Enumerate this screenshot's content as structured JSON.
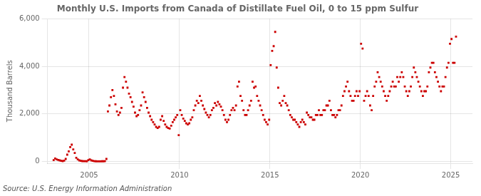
{
  "chart_data": {
    "type": "scatter",
    "title": "Monthly U.S. Imports from Canada of Distillate Fuel Oil, 0 to 15 ppm Sulfur",
    "ylabel": "Thousand Barrels",
    "source": "Source: U.S. Energy Information Administration",
    "color": "#cc0000",
    "marker": "square",
    "grid": true,
    "xlim": [
      2002.7,
      2026.2
    ],
    "xticks": [
      2005,
      2010,
      2015,
      2020,
      2025
    ],
    "ylim": [
      -80,
      6000
    ],
    "yticks": [
      0,
      {
        "value": 2000,
        "label": "2,000"
      },
      {
        "value": 4000,
        "label": "4,000"
      },
      {
        "value": 6000,
        "label": "6,000"
      }
    ],
    "x": [
      2003.0416666666667,
      2003.125,
      2003.2083333333333,
      2003.2916666666667,
      2003.375,
      2003.4583333333333,
      2003.5416666666667,
      2003.625,
      2003.7083333333333,
      2003.7916666666667,
      2003.875,
      2003.9583333333333,
      2004.0416666666667,
      2004.125,
      2004.2083333333333,
      2004.2916666666667,
      2004.375,
      2004.4583333333333,
      2004.5416666666667,
      2004.625,
      2004.7083333333333,
      2004.7916666666667,
      2004.875,
      2004.9583333333333,
      2005.0416666666667,
      2005.125,
      2005.2083333333333,
      2005.2916666666667,
      2005.375,
      2005.4583333333333,
      2005.5416666666667,
      2005.625,
      2005.7083333333333,
      2005.7916666666667,
      2005.875,
      2005.9583333333333,
      2006.0416666666667,
      2006.125,
      2006.2083333333333,
      2006.2916666666667,
      2006.375,
      2006.4583333333333,
      2006.5416666666667,
      2006.625,
      2006.7083333333333,
      2006.7916666666667,
      2006.875,
      2006.9583333333333,
      2007.0416666666667,
      2007.125,
      2007.2083333333333,
      2007.2916666666667,
      2007.375,
      2007.4583333333333,
      2007.5416666666667,
      2007.625,
      2007.7083333333333,
      2007.7916666666667,
      2007.875,
      2007.9583333333333,
      2008.0416666666667,
      2008.125,
      2008.2083333333333,
      2008.2916666666667,
      2008.375,
      2008.4583333333333,
      2008.5416666666667,
      2008.625,
      2008.7083333333333,
      2008.7916666666667,
      2008.875,
      2008.9583333333333,
      2009.0416666666667,
      2009.125,
      2009.2083333333333,
      2009.2916666666667,
      2009.375,
      2009.4583333333333,
      2009.5416666666667,
      2009.625,
      2009.7083333333333,
      2009.7916666666667,
      2009.875,
      2009.9583333333333,
      2010.0416666666667,
      2010.125,
      2010.2083333333333,
      2010.2916666666667,
      2010.375,
      2010.4583333333333,
      2010.5416666666667,
      2010.625,
      2010.7083333333333,
      2010.7916666666667,
      2010.875,
      2010.9583333333333,
      2011.0416666666667,
      2011.125,
      2011.2083333333333,
      2011.2916666666667,
      2011.375,
      2011.4583333333333,
      2011.5416666666667,
      2011.625,
      2011.7083333333333,
      2011.7916666666667,
      2011.875,
      2011.9583333333333,
      2012.0416666666667,
      2012.125,
      2012.2083333333333,
      2012.2916666666667,
      2012.375,
      2012.4583333333333,
      2012.5416666666667,
      2012.625,
      2012.7083333333333,
      2012.7916666666667,
      2012.875,
      2012.9583333333333,
      2013.0416666666667,
      2013.125,
      2013.2083333333333,
      2013.2916666666667,
      2013.375,
      2013.4583333333333,
      2013.5416666666667,
      2013.625,
      2013.7083333333333,
      2013.7916666666667,
      2013.875,
      2013.9583333333333,
      2014.0416666666667,
      2014.125,
      2014.2083333333333,
      2014.2916666666667,
      2014.375,
      2014.4583333333333,
      2014.5416666666667,
      2014.625,
      2014.7083333333333,
      2014.7916666666667,
      2014.875,
      2014.9583333333333,
      2015.0416666666667,
      2015.125,
      2015.2083333333333,
      2015.2916666666667,
      2015.375,
      2015.4583333333333,
      2015.5416666666667,
      2015.625,
      2015.7083333333333,
      2015.7916666666667,
      2015.875,
      2015.9583333333333,
      2016.0416666666667,
      2016.125,
      2016.2083333333333,
      2016.2916666666667,
      2016.375,
      2016.4583333333333,
      2016.5416666666667,
      2016.625,
      2016.7083333333333,
      2016.7916666666667,
      2016.875,
      2016.9583333333333,
      2017.0416666666667,
      2017.125,
      2017.2083333333333,
      2017.2916666666667,
      2017.375,
      2017.4583333333333,
      2017.5416666666667,
      2017.625,
      2017.7083333333333,
      2017.7916666666667,
      2017.875,
      2017.9583333333333,
      2018.0416666666667,
      2018.125,
      2018.2083333333333,
      2018.2916666666667,
      2018.375,
      2018.4583333333333,
      2018.5416666666667,
      2018.625,
      2018.7083333333333,
      2018.7916666666667,
      2018.875,
      2018.9583333333333,
      2019.0416666666667,
      2019.125,
      2019.2083333333333,
      2019.2916666666667,
      2019.375,
      2019.4583333333333,
      2019.5416666666667,
      2019.625,
      2019.7083333333333,
      2019.7916666666667,
      2019.875,
      2019.9583333333333,
      2020.0416666666667,
      2020.125,
      2020.2083333333333,
      2020.2916666666667,
      2020.375,
      2020.4583333333333,
      2020.5416666666667,
      2020.625,
      2020.7083333333333,
      2020.7916666666667,
      2020.875,
      2020.9583333333333,
      2021.0416666666667,
      2021.125,
      2021.2083333333333,
      2021.2916666666667,
      2021.375,
      2021.4583333333333,
      2021.5416666666667,
      2021.625,
      2021.7083333333333,
      2021.7916666666667,
      2021.875,
      2021.9583333333333,
      2022.0416666666667,
      2022.125,
      2022.2083333333333,
      2022.2916666666667,
      2022.375,
      2022.4583333333333,
      2022.5416666666667,
      2022.625,
      2022.7083333333333,
      2022.7916666666667,
      2022.875,
      2022.9583333333333,
      2023.0416666666667,
      2023.125,
      2023.2083333333333,
      2023.2916666666667,
      2023.375,
      2023.4583333333333,
      2023.5416666666667,
      2023.625,
      2023.7083333333333,
      2023.7916666666667,
      2023.875,
      2023.9583333333333,
      2024.0416666666667,
      2024.125,
      2024.2083333333333,
      2024.2916666666667,
      2024.375,
      2024.4583333333333,
      2024.5416666666667,
      2024.625,
      2024.7083333333333,
      2024.7916666666667,
      2024.875,
      2024.9583333333333,
      2025.0416666666667,
      2025.125,
      2025.2083333333333,
      2025.2916666666667
    ],
    "values": [
      50,
      120,
      80,
      60,
      40,
      20,
      10,
      30,
      100,
      280,
      420,
      600,
      700,
      500,
      350,
      150,
      80,
      40,
      20,
      10,
      8,
      5,
      3,
      50,
      80,
      40,
      20,
      5,
      2,
      1,
      1,
      1,
      2,
      3,
      5,
      100,
      2100,
      2350,
      2700,
      3000,
      2750,
      2400,
      2100,
      1950,
      2050,
      2250,
      3100,
      3550,
      3350,
      3100,
      2850,
      2700,
      2500,
      2300,
      2050,
      1900,
      1950,
      2150,
      2350,
      2900,
      2700,
      2500,
      2250,
      2050,
      1900,
      1750,
      1650,
      1550,
      1450,
      1400,
      1450,
      1750,
      1900,
      1700,
      1550,
      1450,
      1400,
      1380,
      1500,
      1650,
      1750,
      1850,
      1950,
      1100,
      2150,
      1950,
      1800,
      1700,
      1600,
      1550,
      1600,
      1750,
      1850,
      2150,
      2350,
      2550,
      2450,
      2750,
      2550,
      2350,
      2200,
      2050,
      1950,
      1850,
      1950,
      2150,
      2250,
      2450,
      2350,
      2500,
      2400,
      2300,
      2150,
      1950,
      1750,
      1650,
      1750,
      1950,
      2150,
      2250,
      2150,
      2350,
      3150,
      3350,
      2750,
      2550,
      2150,
      1950,
      1950,
      2150,
      2350,
      2550,
      3350,
      3100,
      3150,
      2750,
      2550,
      2350,
      2150,
      1950,
      1750,
      1650,
      1550,
      1750,
      4050,
      4650,
      4850,
      5450,
      3950,
      3100,
      2450,
      2350,
      2550,
      2750,
      2450,
      2350,
      2150,
      1950,
      1850,
      1750,
      1750,
      1650,
      1550,
      1450,
      1650,
      1750,
      1650,
      1550,
      2050,
      1950,
      1850,
      1850,
      1750,
      1750,
      1950,
      1950,
      2150,
      1950,
      1950,
      2150,
      2150,
      2350,
      2350,
      2550,
      2150,
      1950,
      1950,
      1850,
      1950,
      2150,
      2150,
      2350,
      2750,
      2950,
      3150,
      3350,
      2950,
      2750,
      2550,
      2550,
      2750,
      2950,
      2750,
      2950,
      4950,
      4750,
      2550,
      2750,
      2950,
      2750,
      2350,
      2150,
      2750,
      3150,
      3350,
      3750,
      3550,
      3350,
      3150,
      2950,
      2750,
      2550,
      2750,
      2950,
      3150,
      3350,
      3150,
      3150,
      3550,
      3350,
      3550,
      3750,
      3550,
      3150,
      2950,
      2750,
      2950,
      3150,
      3550,
      3950,
      3750,
      3550,
      3350,
      3150,
      2950,
      2750,
      2950,
      2950,
      3150,
      3750,
      3950,
      4150,
      4150,
      3750,
      3550,
      3350,
      3150,
      2950,
      3150,
      3150,
      3550,
      3950,
      4150,
      4950,
      5150,
      4150,
      4150,
      5250
    ]
  }
}
